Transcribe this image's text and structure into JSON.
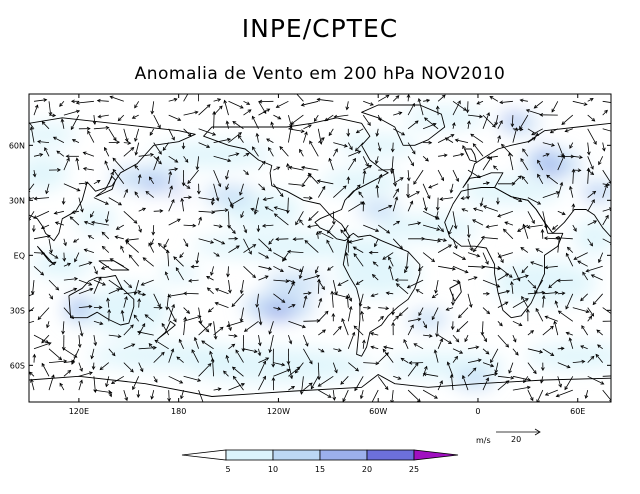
{
  "header": {
    "title": "INPE/CPTEC",
    "subtitle": "Anomalia de Vento em 200 hPa NOV2010"
  },
  "map": {
    "projection": "cylindrical-equidistant",
    "lon_range": [
      90,
      440
    ],
    "lat_range": [
      -80,
      88
    ],
    "lat_ticks": [
      {
        "lat": 60,
        "label": "60N"
      },
      {
        "lat": 30,
        "label": "30N"
      },
      {
        "lat": 0,
        "label": "EQ"
      },
      {
        "lat": -30,
        "label": "30S"
      },
      {
        "lat": -60,
        "label": "60S"
      }
    ],
    "lon_ticks": [
      {
        "lon": 120,
        "label": "120E"
      },
      {
        "lon": 180,
        "label": "180"
      },
      {
        "lon": 240,
        "label": "120W"
      },
      {
        "lon": 300,
        "label": "60W"
      },
      {
        "lon": 360,
        "label": "0"
      },
      {
        "lon": 420,
        "label": "60E"
      }
    ],
    "colors": {
      "coast": "#000000",
      "arrow": "#000000",
      "shade": [
        "#ffffff",
        "#dcf4fc",
        "#bcd8f4",
        "#9cb0ec",
        "#6c70dc",
        "#a010c0"
      ]
    }
  },
  "reference_vector": {
    "units": "m/s",
    "value": "20"
  },
  "colorbar": {
    "levels": [
      "5",
      "10",
      "15",
      "20",
      "25"
    ],
    "colors": [
      "#ffffff",
      "#dcf4fc",
      "#bcd8f4",
      "#9cb0ec",
      "#6c70dc",
      "#a010c0"
    ]
  }
}
